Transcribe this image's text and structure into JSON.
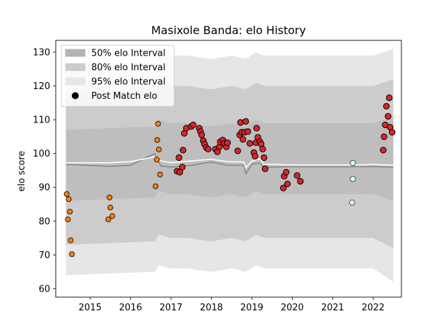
{
  "chart_data": {
    "type": "scatter",
    "title": "Masixole Banda: elo History",
    "xlabel": "",
    "ylabel": "elo score",
    "xlim": [
      2014.15,
      2022.7
    ],
    "ylim": [
      57.5,
      133.5
    ],
    "x_ticks": [
      2015,
      2016,
      2017,
      2018,
      2019,
      2020,
      2021,
      2022
    ],
    "y_ticks": [
      60,
      70,
      80,
      90,
      100,
      110,
      120,
      130
    ],
    "grid": false,
    "legend_position": "upper left",
    "legend": [
      {
        "label": "50% elo Interval",
        "kind": "band",
        "color": "#b3b3b3"
      },
      {
        "label": "80% elo Interval",
        "kind": "band",
        "color": "#cccccc"
      },
      {
        "label": "95% elo Interval",
        "kind": "band",
        "color": "#e6e6e6"
      },
      {
        "label": "Post Match elo",
        "kind": "marker",
        "color": "#000000"
      }
    ],
    "colors": {
      "band_95": "#e6e6e6",
      "band_80": "#cccccc",
      "band_50": "#b3b3b3",
      "median_line": "#888888",
      "mean_line": "#ffffff",
      "point_red": "#d62728",
      "point_orange": "#ff7f0e",
      "point_light": "#e8f4f8",
      "point_edge": "#000000",
      "point_light_edge": "#2e5a6e"
    },
    "bands": {
      "x": [
        2014.4,
        2016.6,
        2016.7,
        2017.0,
        2017.4,
        2018.0,
        2018.5,
        2018.85,
        2019.1,
        2019.3,
        2019.6,
        2020.0,
        2020.5,
        2021.0,
        2021.5,
        2022.0,
        2022.5
      ],
      "lo95": [
        64,
        65,
        67,
        66,
        66,
        65,
        66,
        65,
        67,
        66,
        66,
        66,
        66,
        66,
        66,
        66,
        62
      ],
      "lo80": [
        73,
        74,
        76,
        75,
        75,
        74,
        75,
        74,
        76,
        75,
        75,
        75,
        75,
        75,
        75,
        75,
        72
      ],
      "lo50": [
        86,
        87,
        89,
        88,
        88,
        87,
        88,
        87,
        89,
        88,
        88,
        88,
        88,
        88,
        88,
        88,
        86
      ],
      "hi50": [
        107,
        108,
        110,
        109,
        109,
        108,
        109,
        108,
        110,
        109,
        109,
        109,
        109,
        109,
        109,
        109,
        111
      ],
      "hi80": [
        118,
        119,
        121,
        120,
        120,
        119,
        120,
        119,
        121,
        120,
        120,
        120,
        120,
        120,
        120,
        120,
        122
      ],
      "hi95": [
        126,
        127,
        130,
        129,
        129,
        128,
        129,
        128,
        130,
        129,
        129,
        129,
        129,
        129,
        129,
        129,
        131
      ]
    },
    "median_line": {
      "x": [
        2014.4,
        2015.5,
        2016.0,
        2016.6,
        2016.75,
        2017.0,
        2017.5,
        2018.0,
        2018.4,
        2018.8,
        2018.85,
        2019.0,
        2019.2,
        2019.3,
        2019.6,
        2020.0,
        2020.5,
        2021.0,
        2021.5,
        2022.0,
        2022.5
      ],
      "y": [
        96.8,
        96.2,
        96.5,
        100.0,
        96.3,
        96.0,
        96.5,
        97.5,
        96.5,
        96.5,
        94.0,
        96.8,
        97.2,
        95.8,
        96.0,
        96.1,
        96.1,
        96.1,
        96.1,
        96.1,
        96.0
      ]
    },
    "mean_line": {
      "x": [
        2014.4,
        2015.5,
        2016.0,
        2016.6,
        2016.75,
        2017.0,
        2017.5,
        2018.0,
        2018.4,
        2018.8,
        2018.85,
        2019.0,
        2019.2,
        2019.3,
        2019.6,
        2020.0,
        2020.5,
        2021.0,
        2021.5,
        2022.0,
        2022.5
      ],
      "y": [
        97.2,
        97.3,
        97.6,
        99.0,
        97.8,
        97.3,
        97.8,
        98.3,
        97.6,
        97.5,
        95.8,
        97.8,
        98.5,
        96.8,
        96.8,
        96.6,
        96.6,
        96.6,
        96.6,
        96.8,
        96.5
      ]
    },
    "series": [
      {
        "group": "early",
        "points": [
          [
            2014.42,
            88.0
          ],
          [
            2014.47,
            86.5
          ],
          [
            2014.5,
            82.8
          ],
          [
            2014.45,
            80.5
          ],
          [
            2014.52,
            74.3
          ],
          [
            2014.55,
            70.2
          ],
          [
            2015.45,
            80.5
          ],
          [
            2015.48,
            87.0
          ],
          [
            2015.5,
            84.0
          ],
          [
            2015.55,
            81.5
          ],
          [
            2016.62,
            90.3
          ],
          [
            2016.65,
            98.2
          ],
          [
            2016.66,
            104.0
          ],
          [
            2016.68,
            108.8
          ],
          [
            2016.7,
            101.2
          ],
          [
            2016.73,
            93.8
          ]
        ]
      },
      {
        "group": "main",
        "points": [
          [
            2017.15,
            94.8
          ],
          [
            2017.2,
            98.8
          ],
          [
            2017.22,
            94.5
          ],
          [
            2017.28,
            96.0
          ],
          [
            2017.3,
            101.0
          ],
          [
            2017.33,
            106.0
          ],
          [
            2017.38,
            107.5
          ],
          [
            2017.5,
            108.0
          ],
          [
            2017.55,
            108.5
          ],
          [
            2017.7,
            107.5
          ],
          [
            2017.73,
            106.5
          ],
          [
            2017.76,
            105.5
          ],
          [
            2017.8,
            103.8
          ],
          [
            2017.83,
            102.8
          ],
          [
            2017.87,
            101.8
          ],
          [
            2017.92,
            101.3
          ],
          [
            2018.1,
            101.3
          ],
          [
            2018.15,
            100.5
          ],
          [
            2018.2,
            102.0
          ],
          [
            2018.22,
            103.5
          ],
          [
            2018.28,
            104.0
          ],
          [
            2018.32,
            103.0
          ],
          [
            2018.37,
            102.0
          ],
          [
            2018.4,
            103.2
          ],
          [
            2018.65,
            100.8
          ],
          [
            2018.7,
            105.5
          ],
          [
            2018.72,
            109.2
          ],
          [
            2018.75,
            106.3
          ],
          [
            2018.78,
            104.2
          ],
          [
            2018.82,
            106.3
          ],
          [
            2018.85,
            109.5
          ],
          [
            2018.9,
            106.5
          ],
          [
            2018.95,
            103.0
          ],
          [
            2019.05,
            100.3
          ],
          [
            2019.08,
            99.2
          ],
          [
            2019.1,
            103.2
          ],
          [
            2019.12,
            107.5
          ],
          [
            2019.15,
            104.8
          ],
          [
            2019.2,
            103.5
          ],
          [
            2019.23,
            102.8
          ],
          [
            2019.27,
            101.3
          ],
          [
            2019.3,
            98.8
          ],
          [
            2019.33,
            95.5
          ],
          [
            2019.78,
            89.8
          ],
          [
            2019.8,
            93.3
          ],
          [
            2019.85,
            94.5
          ],
          [
            2019.88,
            91.0
          ],
          [
            2020.12,
            93.5
          ],
          [
            2020.2,
            91.8
          ]
        ]
      },
      {
        "group": "light",
        "points": [
          [
            2021.5,
            97.2
          ],
          [
            2021.5,
            92.5
          ],
          [
            2021.48,
            85.5
          ]
        ]
      },
      {
        "group": "late",
        "points": [
          [
            2022.25,
            101.0
          ],
          [
            2022.27,
            105.0
          ],
          [
            2022.3,
            108.5
          ],
          [
            2022.33,
            114.0
          ],
          [
            2022.37,
            111.0
          ],
          [
            2022.4,
            116.5
          ],
          [
            2022.42,
            107.8
          ],
          [
            2022.47,
            106.3
          ]
        ]
      }
    ]
  }
}
